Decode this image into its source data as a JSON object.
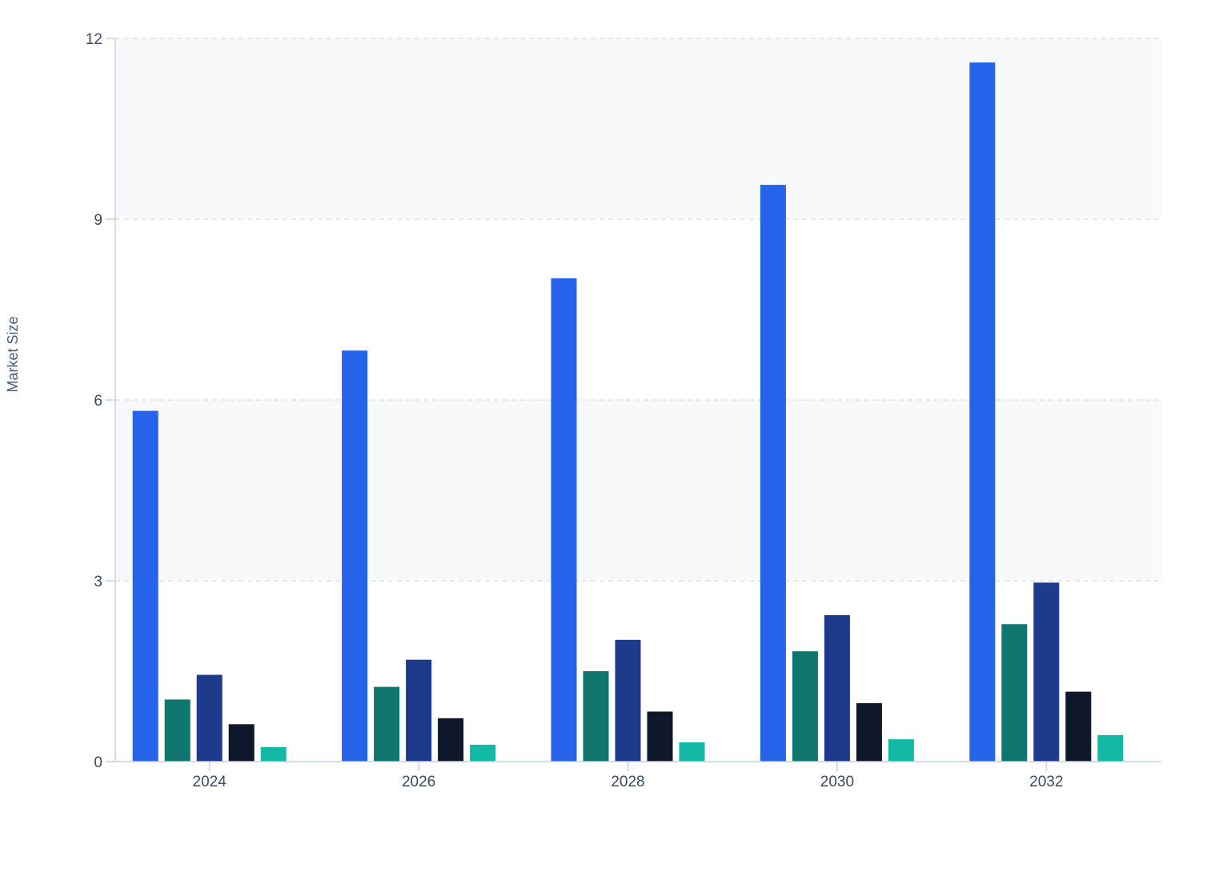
{
  "chart_data": {
    "type": "bar",
    "title": "",
    "xlabel": "",
    "ylabel": "Market Size",
    "categories": [
      "2024",
      "2026",
      "2028",
      "2030",
      "2032"
    ],
    "series": [
      {
        "values": [
          5.82,
          6.82,
          8.02,
          9.57,
          11.6
        ],
        "color": "#2563eb"
      },
      {
        "values": [
          1.03,
          1.24,
          1.5,
          1.83,
          2.28
        ],
        "color": "#0f766e"
      },
      {
        "values": [
          1.44,
          1.69,
          2.02,
          2.43,
          2.97
        ],
        "color": "#1e3a8a"
      },
      {
        "values": [
          0.62,
          0.72,
          0.83,
          0.97,
          1.16
        ],
        "color": "#0f172a"
      },
      {
        "values": [
          0.24,
          0.28,
          0.32,
          0.37,
          0.44
        ],
        "color": "#14b8a6"
      }
    ],
    "ylim": [
      0,
      12
    ],
    "yticks": [
      0,
      3,
      6,
      9,
      12
    ],
    "grid": true,
    "legend": "none",
    "colors": {
      "band": "#f8f9fb",
      "grid": "#d8dde8",
      "axis": "#c9cfe6",
      "text": "#3b4a63"
    }
  }
}
